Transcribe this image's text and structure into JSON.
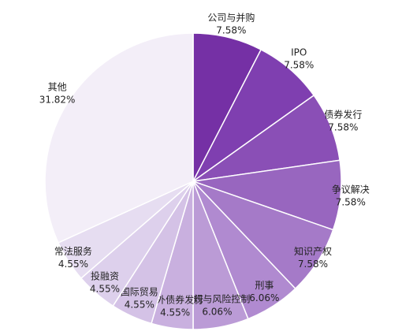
{
  "chart_data": {
    "type": "pie",
    "categories": [
      "公司与并购",
      "IPO",
      "债券发行",
      "争议解决",
      "知识产权",
      "刑事",
      "合规与风险控制",
      "境外债券发行",
      "国际贸易",
      "投融资",
      "常法服务",
      "其他"
    ],
    "values": [
      7.58,
      7.58,
      7.58,
      7.58,
      7.58,
      6.06,
      6.06,
      4.55,
      4.55,
      4.55,
      4.55,
      31.82
    ],
    "value_labels": [
      "7.58%",
      "7.58%",
      "7.58%",
      "7.58%",
      "7.58%",
      "6.06%",
      "6.06%",
      "4.55%",
      "4.55%",
      "4.55%",
      "4.55%",
      "31.82%"
    ],
    "colors": [
      "#7530a5",
      "#7f3fb0",
      "#8a4fb6",
      "#9866bf",
      "#a57ac8",
      "#b08ad0",
      "#bb9bd6",
      "#c9b0df",
      "#d4c2e6",
      "#ddd0ec",
      "#e6ddf1",
      "#f3eef8"
    ]
  }
}
